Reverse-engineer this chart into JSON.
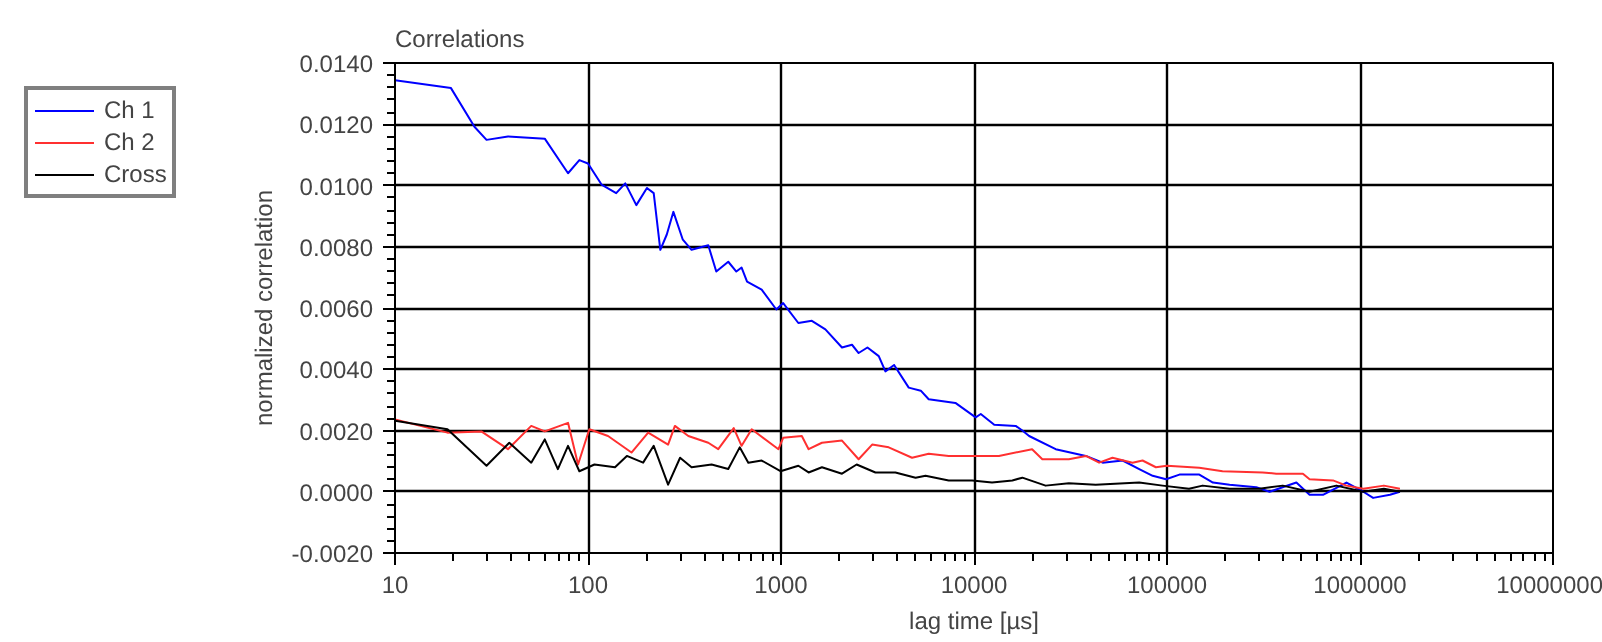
{
  "chart_data": {
    "type": "line",
    "title": "Correlations",
    "xlabel": "lag time [µs]",
    "ylabel": "normalized correlation",
    "log": "x",
    "grid": true,
    "legend": "top left",
    "marker": "none",
    "line_style": "solid",
    "xlim": [
      10,
      10000000
    ],
    "xticks": [
      10,
      100,
      1000,
      10000,
      100000,
      1000000,
      10000000
    ],
    "ylim": [
      -0.002,
      0.014
    ],
    "yticks": [
      {
        "value": -0.002,
        "label": "-0.0020"
      },
      {
        "value": 0,
        "label": "0.0000"
      },
      {
        "value": 0.002,
        "label": "0.0020"
      },
      {
        "value": 0.004,
        "label": "0.0040"
      },
      {
        "value": 0.006,
        "label": "0.0060"
      },
      {
        "value": 0.008,
        "label": "0.0080"
      },
      {
        "value": 0.01,
        "label": "0.0100"
      },
      {
        "value": 0.012,
        "label": "0.0120"
      },
      {
        "value": 0.014,
        "label": "0.0140"
      }
    ],
    "series": [
      {
        "name": "Ch 1",
        "color": "#0000ff",
        "x": [
          10,
          19.5,
          25.8,
          29.8,
          38.5,
          59.7,
          78.8,
          90.2,
          100,
          117.5,
          140,
          156,
          178,
          202,
          219,
          237,
          256,
          277,
          310,
          344,
          420,
          462,
          533,
          587,
          625,
          667,
          794,
          946,
          1026,
          1230,
          1445,
          1698,
          2070,
          2333,
          2525,
          2805,
          3210,
          3475,
          3855,
          4590,
          5300,
          5825,
          8010,
          10200,
          10840,
          12730,
          16440,
          17800,
          19300,
          26500,
          38000,
          46400,
          58900,
          71800,
          84300,
          98900,
          116000,
          147000,
          173000,
          211000,
          290000,
          340000,
          468000,
          548000,
          643000,
          851000,
          1040000,
          1170000,
          1430000,
          1610000
        ],
        "values": [
          0.01344,
          0.01318,
          0.01192,
          0.01149,
          0.0116,
          0.01153,
          0.0104,
          0.01083,
          0.01072,
          0.01003,
          0.00975,
          0.01007,
          0.00936,
          0.00992,
          0.00975,
          0.0079,
          0.0084,
          0.00914,
          0.00823,
          0.0079,
          0.00805,
          0.00719,
          0.00751,
          0.00719,
          0.00732,
          0.00686,
          0.0066,
          0.00595,
          0.00616,
          0.00551,
          0.00558,
          0.0053,
          0.00471,
          0.0048,
          0.00453,
          0.00471,
          0.00443,
          0.00393,
          0.00414,
          0.0034,
          0.0033,
          0.00302,
          0.0029,
          0.00243,
          0.00254,
          0.00219,
          0.00215,
          0.002,
          0.00182,
          0.00139,
          0.00117,
          0.00095,
          0.00102,
          0.00074,
          0.00052,
          0.00041,
          0.00056,
          0.00056,
          0.0003,
          0.00023,
          0.00015,
          0.0,
          0.0003,
          -0.0001,
          -0.0001,
          0.0003,
          0.0,
          -0.0002,
          -0.0001,
          0.0
        ]
      },
      {
        "name": "Ch 2",
        "color": "#ff3030",
        "x": [
          10,
          18.7,
          28,
          38.5,
          50.8,
          59.7,
          78.8,
          88.8,
          101.6,
          127,
          168,
          205,
          260,
          282,
          331,
          420,
          473,
          569,
          625,
          705,
          970,
          1026,
          1282,
          1390,
          1630,
          2070,
          2525,
          2967,
          3615,
          4775,
          5825,
          7395,
          10200,
          13460,
          20000,
          22600,
          31000,
          38000,
          44500,
          52200,
          66300,
          74700,
          87600,
          100000,
          147000,
          194000,
          313000,
          368000,
          506000,
          548000,
          724000,
          851000,
          1040000,
          1330000,
          1610000
        ],
        "values": [
          0.00236,
          0.00193,
          0.00197,
          0.00139,
          0.00215,
          0.00197,
          0.00225,
          0.00089,
          0.00204,
          0.00182,
          0.00128,
          0.00193,
          0.00154,
          0.00215,
          0.00182,
          0.0016,
          0.00139,
          0.00208,
          0.0015,
          0.00204,
          0.00139,
          0.00176,
          0.00182,
          0.00139,
          0.0016,
          0.00167,
          0.00106,
          0.00154,
          0.00145,
          0.00111,
          0.00124,
          0.00117,
          0.00117,
          0.00117,
          0.00139,
          0.00106,
          0.00106,
          0.00117,
          0.00095,
          0.00111,
          0.00095,
          0.00102,
          0.0008,
          0.00085,
          0.00078,
          0.00067,
          0.00063,
          0.00059,
          0.00059,
          0.00041,
          0.00037,
          0.0002,
          0.0001,
          0.0002,
          0.0001
        ]
      },
      {
        "name": "Cross",
        "color": "#000000",
        "x": [
          10,
          18.7,
          29.8,
          39.1,
          50.8,
          59.7,
          69.8,
          78.8,
          90.2,
          108,
          138,
          159,
          193,
          219,
          260,
          300,
          344,
          437,
          533,
          611,
          677,
          794,
          994,
          1230,
          1390,
          1630,
          2070,
          2466,
          3085,
          3915,
          4980,
          5610,
          7395,
          9780,
          12400,
          15800,
          17800,
          23500,
          31000,
          42700,
          71800,
          94800,
          130000,
          153000,
          211000,
          301000,
          398000,
          548000,
          754000,
          1040000,
          1330000,
          1610000
        ],
        "values": [
          0.00232,
          0.00204,
          0.00085,
          0.0016,
          0.00095,
          0.00171,
          0.00074,
          0.0015,
          0.00067,
          0.00089,
          0.0008,
          0.00117,
          0.00095,
          0.0015,
          0.00023,
          0.00111,
          0.0008,
          0.00089,
          0.00074,
          0.00145,
          0.00095,
          0.00102,
          0.00067,
          0.00085,
          0.00063,
          0.0008,
          0.00059,
          0.00089,
          0.00063,
          0.00063,
          0.00046,
          0.00052,
          0.00037,
          0.00037,
          0.0003,
          0.00037,
          0.00046,
          0.0002,
          0.00028,
          0.00023,
          0.0003,
          0.0002,
          0.0001,
          0.0002,
          0.0001,
          0.0001,
          0.0002,
          0.0,
          0.0002,
          0.0,
          0.0001,
          0.0
        ]
      }
    ]
  }
}
